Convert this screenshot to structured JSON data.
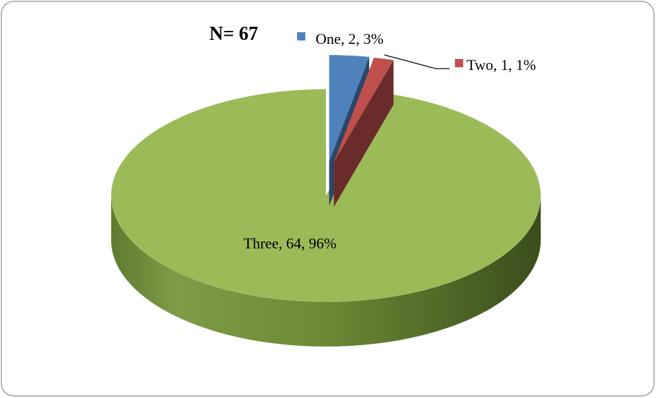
{
  "chart_data": {
    "type": "pie",
    "title": "N= 67",
    "values": [
      2,
      1,
      64
    ],
    "value_labels": [
      "One, 2, 3%",
      "Two, 1, 1%",
      "Three, 64, 96%"
    ],
    "colors": [
      "#4f81bd",
      "#c0504d",
      "#9bbb59"
    ]
  }
}
